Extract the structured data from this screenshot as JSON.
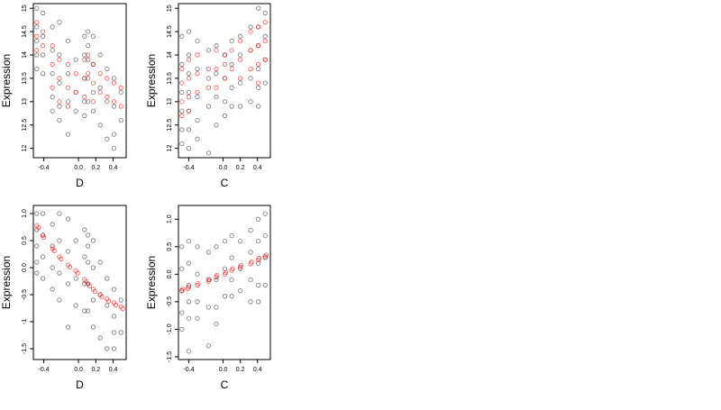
{
  "chart_data": [
    {
      "type": "scatter",
      "xlabel": "D",
      "ylabel": "Expression",
      "xlim": [
        -0.52,
        0.55
      ],
      "ylim": [
        11.8,
        15.1
      ],
      "xticks": [
        "-0.4",
        "0.0",
        "0.2",
        "0.4"
      ],
      "yticks": [
        "12",
        "12.5",
        "13",
        "13.5",
        "14",
        "14.5",
        "15"
      ],
      "grid": false,
      "series": [
        {
          "color": "#000000",
          "marker": "open-circle",
          "x": [
            -0.48,
            -0.48,
            -0.48,
            -0.48,
            -0.48,
            -0.41,
            -0.41,
            -0.41,
            -0.41,
            -0.3,
            -0.3,
            -0.3,
            -0.3,
            -0.3,
            -0.22,
            -0.22,
            -0.22,
            -0.22,
            -0.22,
            -0.12,
            -0.12,
            -0.12,
            -0.12,
            -0.03,
            -0.03,
            -0.03,
            0.07,
            0.07,
            0.07,
            0.07,
            0.07,
            0.11,
            0.11,
            0.11,
            0.11,
            0.11,
            0.17,
            0.17,
            0.17,
            0.17,
            0.25,
            0.25,
            0.25,
            0.33,
            0.33,
            0.33,
            0.41,
            0.41,
            0.41,
            0.41,
            0.49,
            0.49
          ],
          "y": [
            15.0,
            14.6,
            14.3,
            14.0,
            13.7,
            14.9,
            14.4,
            14.0,
            13.6,
            14.6,
            14.1,
            13.6,
            13.1,
            12.8,
            14.7,
            14.0,
            13.4,
            12.9,
            12.6,
            14.3,
            13.6,
            13.0,
            12.3,
            13.9,
            13.2,
            12.8,
            14.4,
            14.0,
            13.5,
            13.0,
            12.7,
            14.5,
            14.2,
            13.9,
            13.5,
            13.0,
            14.4,
            13.8,
            13.2,
            12.8,
            14.0,
            13.3,
            12.5,
            13.7,
            13.0,
            12.2,
            13.5,
            12.9,
            12.3,
            12.0,
            13.2,
            12.6
          ]
        },
        {
          "color": "#ff0000",
          "marker": "open-circle",
          "x": [
            -0.48,
            -0.48,
            -0.48,
            -0.41,
            -0.41,
            -0.3,
            -0.3,
            -0.3,
            -0.22,
            -0.22,
            -0.22,
            -0.12,
            -0.12,
            -0.12,
            -0.03,
            -0.03,
            0.07,
            0.07,
            0.07,
            0.11,
            0.11,
            0.17,
            0.17,
            0.17,
            0.25,
            0.25,
            0.33,
            0.33,
            0.41,
            0.41,
            0.49,
            0.49
          ],
          "y": [
            14.7,
            14.4,
            14.1,
            14.5,
            14.2,
            14.2,
            13.8,
            13.3,
            13.9,
            13.5,
            13.0,
            13.8,
            13.3,
            12.9,
            13.6,
            13.2,
            13.9,
            13.5,
            13.1,
            14.0,
            13.6,
            13.8,
            13.4,
            13.0,
            13.6,
            13.2,
            13.5,
            13.1,
            13.4,
            13.0,
            13.3,
            12.9
          ]
        }
      ]
    },
    {
      "type": "scatter",
      "xlabel": "C",
      "ylabel": "Expression",
      "xlim": [
        -0.52,
        0.55
      ],
      "ylim": [
        11.8,
        15.1
      ],
      "xticks": [
        "-0.4",
        "0.0",
        "0.2",
        "0.4"
      ],
      "yticks": [
        "12",
        "12.5",
        "13",
        "13.5",
        "14",
        "14.5",
        "15"
      ],
      "grid": false,
      "series": [
        {
          "color": "#000000",
          "marker": "open-circle",
          "x": [
            -0.48,
            -0.48,
            -0.48,
            -0.48,
            -0.48,
            -0.48,
            -0.4,
            -0.4,
            -0.4,
            -0.4,
            -0.4,
            -0.4,
            -0.4,
            -0.3,
            -0.3,
            -0.3,
            -0.3,
            -0.3,
            -0.17,
            -0.17,
            -0.17,
            -0.17,
            -0.08,
            -0.08,
            -0.08,
            -0.08,
            0.02,
            0.02,
            0.02,
            0.02,
            0.1,
            0.1,
            0.1,
            0.1,
            0.2,
            0.2,
            0.2,
            0.2,
            0.32,
            0.32,
            0.32,
            0.32,
            0.41,
            0.41,
            0.41,
            0.41,
            0.41,
            0.41,
            0.49,
            0.49,
            0.49,
            0.49
          ],
          "y": [
            14.4,
            13.8,
            13.2,
            12.8,
            12.4,
            12.1,
            14.5,
            14.0,
            13.6,
            13.2,
            12.8,
            12.4,
            12.0,
            14.3,
            13.7,
            13.1,
            12.6,
            12.2,
            14.1,
            13.5,
            12.9,
            11.9,
            14.2,
            13.6,
            13.1,
            12.5,
            14.0,
            13.5,
            13.0,
            12.7,
            14.3,
            13.8,
            13.3,
            12.9,
            14.4,
            14.0,
            13.4,
            12.9,
            14.6,
            14.1,
            13.5,
            13.0,
            15.0,
            14.6,
            14.2,
            13.7,
            13.3,
            12.9,
            14.9,
            14.4,
            13.9,
            13.4
          ]
        },
        {
          "color": "#ff0000",
          "marker": "open-circle",
          "x": [
            -0.48,
            -0.48,
            -0.48,
            -0.48,
            -0.4,
            -0.4,
            -0.4,
            -0.4,
            -0.3,
            -0.3,
            -0.3,
            -0.17,
            -0.17,
            -0.08,
            -0.08,
            -0.08,
            0.02,
            0.02,
            0.02,
            0.1,
            0.1,
            0.2,
            0.2,
            0.2,
            0.32,
            0.32,
            0.32,
            0.41,
            0.41,
            0.41,
            0.41,
            0.49,
            0.49,
            0.49
          ],
          "y": [
            13.7,
            13.4,
            13.0,
            12.7,
            13.9,
            13.5,
            13.1,
            12.8,
            14.0,
            13.6,
            13.2,
            13.7,
            13.3,
            14.1,
            13.7,
            13.3,
            14.0,
            13.8,
            13.5,
            14.1,
            13.7,
            14.3,
            13.9,
            13.5,
            14.5,
            14.1,
            13.7,
            14.6,
            14.2,
            13.8,
            13.4,
            14.7,
            14.3,
            13.9
          ]
        }
      ]
    },
    {
      "type": "scatter",
      "xlabel": "D",
      "ylabel": "Expression",
      "xlim": [
        -0.52,
        0.55
      ],
      "ylim": [
        -1.7,
        1.15
      ],
      "xticks": [
        "-0.4",
        "0.0",
        "0.2",
        "0.4"
      ],
      "yticks": [
        "-1.5",
        "-1",
        "-0.5",
        "0.0",
        "0.5",
        "1.0"
      ],
      "grid": false,
      "series": [
        {
          "color": "#000000",
          "marker": "open-circle",
          "x": [
            -0.48,
            -0.48,
            -0.48,
            -0.48,
            -0.48,
            -0.41,
            -0.41,
            -0.41,
            -0.41,
            -0.3,
            -0.3,
            -0.3,
            -0.3,
            -0.22,
            -0.22,
            -0.22,
            -0.22,
            -0.12,
            -0.12,
            -0.12,
            -0.12,
            -0.03,
            -0.03,
            -0.03,
            0.07,
            0.07,
            0.07,
            0.07,
            0.11,
            0.11,
            0.11,
            0.11,
            0.11,
            0.17,
            0.17,
            0.17,
            0.17,
            0.25,
            0.25,
            0.25,
            0.33,
            0.33,
            0.33,
            0.41,
            0.41,
            0.41,
            0.41,
            0.49,
            0.49
          ],
          "y": [
            1.0,
            0.7,
            0.4,
            0.1,
            -0.1,
            1.0,
            0.6,
            0.2,
            -0.2,
            0.8,
            0.4,
            0.0,
            -0.4,
            1.0,
            0.5,
            -0.1,
            -0.6,
            0.9,
            0.3,
            -0.3,
            -1.1,
            0.5,
            -0.2,
            -0.7,
            0.7,
            0.2,
            -0.3,
            -0.8,
            0.6,
            0.4,
            0.1,
            -0.3,
            -0.8,
            0.5,
            0.0,
            -0.6,
            -1.1,
            0.1,
            -0.5,
            -1.3,
            -0.2,
            -0.7,
            -1.5,
            -0.4,
            -0.9,
            -1.2,
            -1.5,
            -0.6,
            -1.2
          ]
        },
        {
          "color": "#ff0000",
          "marker": "open-circle",
          "x": [
            -0.48,
            -0.46,
            -0.41,
            -0.4,
            -0.3,
            -0.28,
            -0.22,
            -0.2,
            -0.12,
            -0.1,
            -0.03,
            -0.01,
            0.07,
            0.09,
            0.11,
            0.13,
            0.17,
            0.19,
            0.25,
            0.27,
            0.33,
            0.35,
            0.41,
            0.43,
            0.49,
            0.51
          ],
          "y": [
            0.78,
            0.74,
            0.6,
            0.56,
            0.35,
            0.31,
            0.2,
            0.16,
            0.05,
            0.01,
            -0.06,
            -0.1,
            -0.22,
            -0.26,
            -0.3,
            -0.34,
            -0.4,
            -0.44,
            -0.5,
            -0.54,
            -0.58,
            -0.62,
            -0.65,
            -0.69,
            -0.72,
            -0.76
          ]
        }
      ]
    },
    {
      "type": "scatter",
      "xlabel": "C",
      "ylabel": "Expression",
      "xlim": [
        -0.52,
        0.55
      ],
      "ylim": [
        -1.55,
        1.25
      ],
      "xticks": [
        "-0.4",
        "0.0",
        "0.2",
        "0.4"
      ],
      "yticks": [
        "-1.5",
        "-1.0",
        "-0.5",
        "0.0",
        "0.5",
        "1.0"
      ],
      "grid": false,
      "series": [
        {
          "color": "#000000",
          "marker": "open-circle",
          "x": [
            -0.48,
            -0.48,
            -0.48,
            -0.48,
            -0.48,
            -0.4,
            -0.4,
            -0.4,
            -0.4,
            -0.4,
            -0.4,
            -0.3,
            -0.3,
            -0.3,
            -0.3,
            -0.17,
            -0.17,
            -0.17,
            -0.17,
            -0.08,
            -0.08,
            -0.08,
            -0.08,
            0.02,
            0.02,
            0.02,
            0.1,
            0.1,
            0.1,
            0.1,
            0.2,
            0.2,
            0.2,
            0.32,
            0.32,
            0.32,
            0.32,
            0.41,
            0.41,
            0.41,
            0.41,
            0.41,
            0.49,
            0.49,
            0.49,
            0.49
          ],
          "y": [
            0.5,
            0.1,
            -0.3,
            -0.7,
            -1.0,
            0.6,
            0.2,
            -0.2,
            -0.5,
            -0.8,
            -1.4,
            0.5,
            0.0,
            -0.5,
            -0.8,
            0.4,
            -0.1,
            -0.6,
            -1.3,
            0.5,
            -0.1,
            -0.6,
            -0.9,
            0.6,
            0.1,
            -0.4,
            0.7,
            0.3,
            -0.1,
            -0.4,
            0.6,
            0.1,
            -0.3,
            0.8,
            0.4,
            -0.1,
            -0.5,
            1.0,
            0.6,
            0.2,
            -0.2,
            -0.5,
            1.1,
            0.7,
            0.3,
            -0.2
          ]
        },
        {
          "color": "#ff0000",
          "marker": "open-circle",
          "x": [
            -0.48,
            -0.47,
            -0.41,
            -0.4,
            -0.3,
            -0.29,
            -0.17,
            -0.16,
            -0.08,
            -0.07,
            0.02,
            0.03,
            0.1,
            0.11,
            0.2,
            0.21,
            0.32,
            0.33,
            0.41,
            0.42,
            0.49,
            0.5
          ],
          "y": [
            -0.3,
            -0.27,
            -0.26,
            -0.23,
            -0.2,
            -0.17,
            -0.13,
            -0.1,
            -0.05,
            -0.02,
            0.0,
            0.03,
            0.07,
            0.1,
            0.13,
            0.16,
            0.19,
            0.22,
            0.26,
            0.29,
            0.32,
            0.35
          ]
        }
      ]
    }
  ]
}
